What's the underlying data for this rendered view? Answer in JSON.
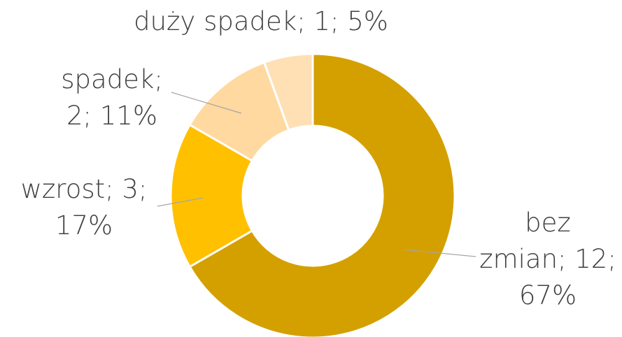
{
  "chart_data": {
    "type": "donut",
    "values": [
      12,
      3,
      2,
      1
    ],
    "value_labels": [
      [
        "bez",
        "zmian; 12;",
        "67%"
      ],
      [
        "wzrost; 3;",
        "17%"
      ],
      [
        "spadek;",
        "2; 11%"
      ],
      [
        "duży spadek; 1; 5%"
      ]
    ],
    "colors": [
      "#d4a000",
      "#ffc000",
      "#ffd9a0",
      "#ffe0b4"
    ]
  }
}
